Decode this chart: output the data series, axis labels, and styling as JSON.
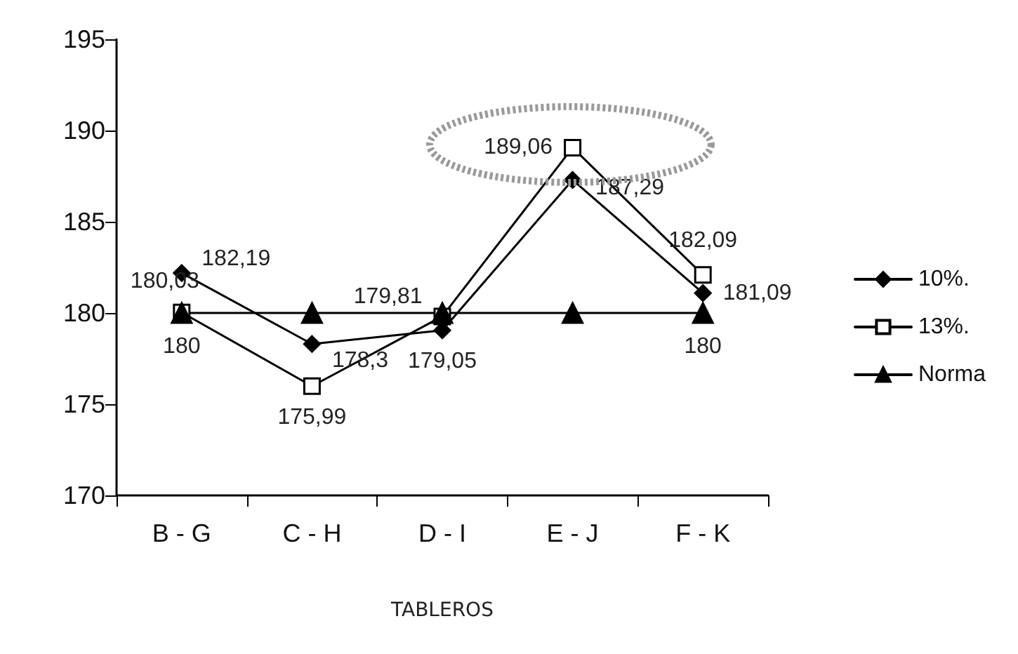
{
  "chart_data": {
    "type": "line",
    "xlabel": "TABLEROS",
    "categories": [
      "B - G",
      "C - H",
      "D - I",
      "E - J",
      "F - K"
    ],
    "series": [
      {
        "name": "10%.",
        "color": "#000000",
        "marker": "diamond",
        "values": [
          182.19,
          178.3,
          179.05,
          187.29,
          181.09
        ],
        "value_labels": [
          "182,19",
          "178,3",
          "179,05",
          "187,29",
          "181,09"
        ]
      },
      {
        "name": "13%.",
        "color": "#000000",
        "marker": "square",
        "values": [
          180.03,
          175.99,
          179.81,
          189.06,
          182.09
        ],
        "value_labels": [
          "180,03",
          "175,99",
          "179,81",
          "189,06",
          "182,09"
        ]
      },
      {
        "name": "Norma",
        "color": "#000000",
        "marker": "triangle",
        "values": [
          180,
          180,
          180,
          180,
          180
        ],
        "value_labels": [
          "180",
          null,
          null,
          null,
          "180"
        ]
      }
    ],
    "ylim": [
      170,
      195
    ],
    "yticks": [
      170,
      175,
      180,
      185,
      190,
      195
    ],
    "grid": false,
    "legend": "right",
    "line_style": "solid"
  }
}
